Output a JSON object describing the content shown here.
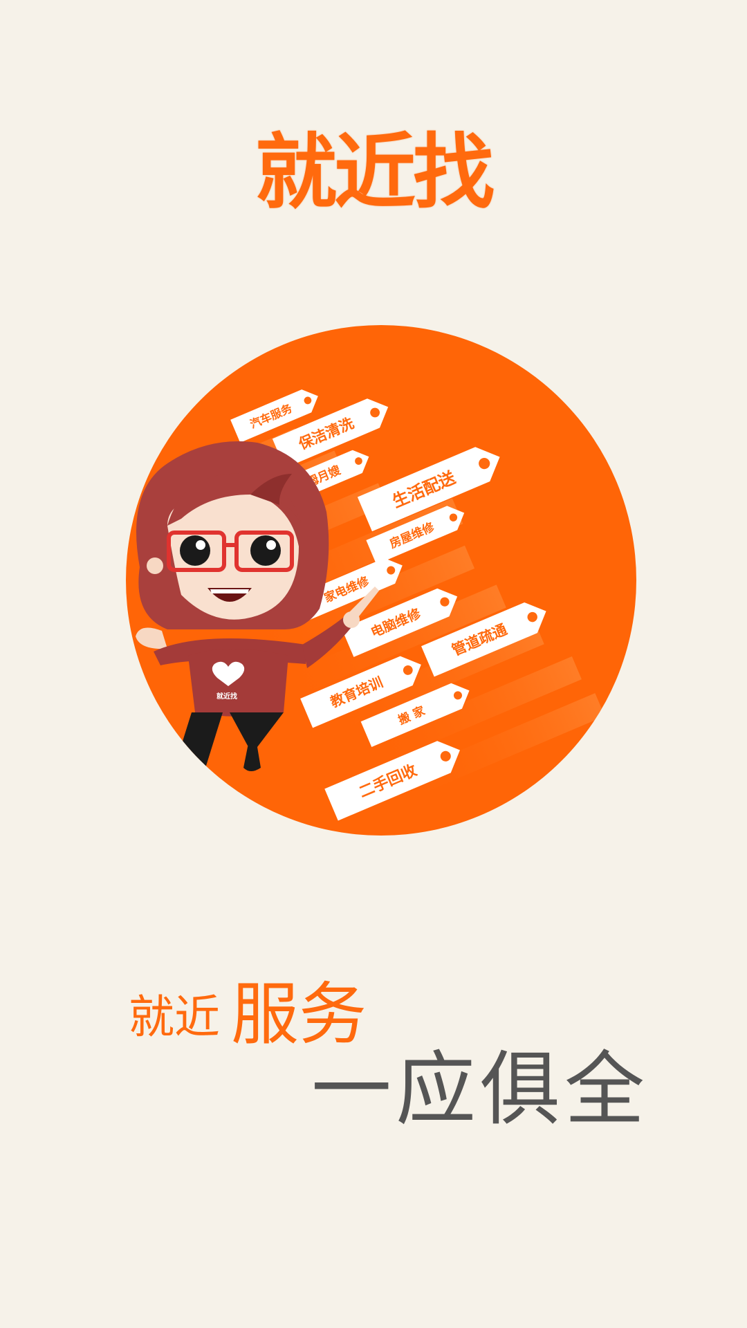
{
  "app": {
    "logo_text": "就近找"
  },
  "hero": {
    "mascot_shirt_text": "就近找",
    "service_tags": [
      "汽车服务",
      "保洁清洗",
      "保姆月嫂",
      "生活配送",
      "房屋维修",
      "家电维修",
      "电脑维修",
      "管道疏通",
      "教育培训",
      "搬 家",
      "二手回收"
    ]
  },
  "slogan": {
    "prefix": "就近",
    "highlight": "服务",
    "second_line": "一应俱全"
  },
  "colors": {
    "brand_orange": "#ff6a0e",
    "background": "#f6f2e9",
    "slogan_gray": "#555555",
    "tag_white": "#ffffff"
  },
  "icons": {
    "mascot": "mascot-girl-with-glasses",
    "tag_hole": "tag-hole-dot"
  }
}
